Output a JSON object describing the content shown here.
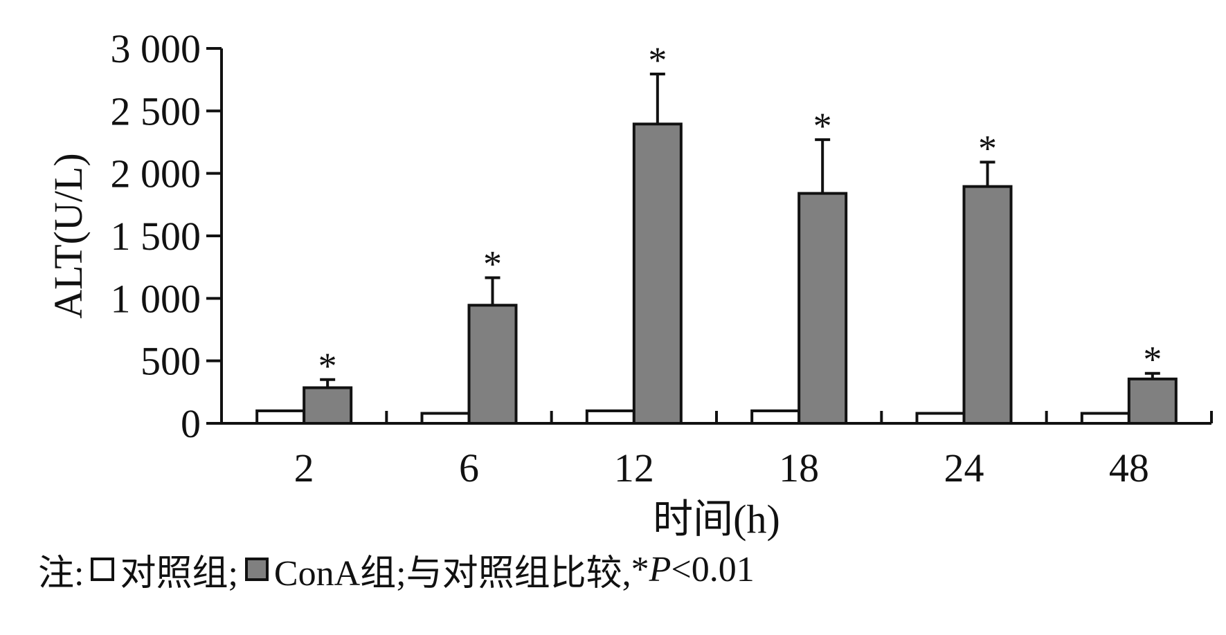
{
  "chart_data": {
    "type": "bar",
    "categories": [
      "2",
      "6",
      "12",
      "18",
      "24",
      "48"
    ],
    "series": [
      {
        "name": "对照组",
        "values": [
          100,
          80,
          100,
          100,
          80,
          80
        ],
        "errors": [
          0,
          0,
          0,
          0,
          0,
          0
        ],
        "color": "#ffffff"
      },
      {
        "name": "ConA组",
        "values": [
          285,
          945,
          2395,
          1840,
          1895,
          355
        ],
        "errors": [
          65,
          220,
          400,
          430,
          195,
          45
        ],
        "color": "#808080"
      }
    ],
    "significance_marker": "*",
    "ylabel": "ALT(U/L)",
    "xlabel": "时间(h)",
    "ylim": [
      0,
      3000
    ],
    "yticks": [
      0,
      500,
      1000,
      1500,
      2000,
      2500,
      3000
    ],
    "ytick_labels": [
      "0",
      "500",
      "1 000",
      "1 500",
      "2 000",
      "2 500",
      "3 000"
    ],
    "grid": false
  },
  "note": {
    "prefix": "注:",
    "control_label": "对照组;",
    "cona_label": "ConA组;",
    "comparison": "与对照组比较,",
    "star": "*",
    "p": "P",
    "threshold": "<0.01"
  }
}
